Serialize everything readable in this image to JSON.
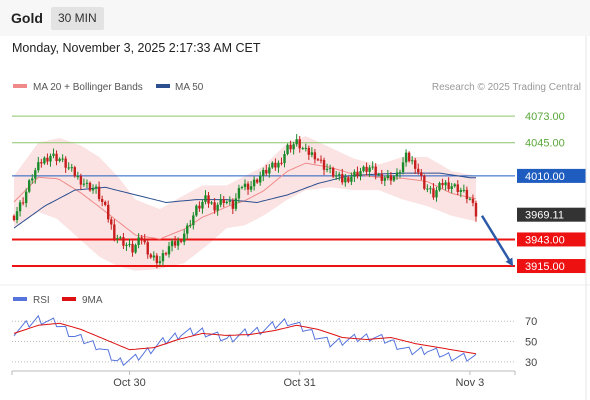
{
  "header": {
    "instrument": "Gold",
    "timeframe": "30 MIN"
  },
  "timestamp": "Monday, November 3, 2025 2:17:33 AM CET",
  "legend": {
    "items": [
      {
        "label": "MA 20 + Bollinger Bands",
        "color": "#f08a8a"
      },
      {
        "label": "MA 50",
        "color": "#2b4f8f"
      }
    ],
    "credit": "Research © 2025 Trading Central"
  },
  "colors": {
    "up": "#1a8a2a",
    "down": "#c81e1e",
    "support": "#ee1111",
    "resistance": "#8cc56a",
    "pivot": "#1f5cc0",
    "last": "#333333",
    "arrow": "#2c5aa8",
    "band": "#fadada"
  },
  "chart_data": [
    {
      "type": "candlestick",
      "x_tick_labels": [
        "Oct 30",
        "Oct 31",
        "Nov 3"
      ],
      "ylim": [
        3895,
        4090
      ],
      "last_price": 3969.11,
      "levels": [
        {
          "value": 4073.0,
          "label": "4073.00",
          "kind": "resistance"
        },
        {
          "value": 4045.0,
          "label": "4045.00",
          "kind": "resistance"
        },
        {
          "value": 4010.0,
          "label": "4010.00",
          "kind": "pivot"
        },
        {
          "value": 3969.11,
          "label": "3969.11",
          "kind": "last"
        },
        {
          "value": 3943.0,
          "label": "3943.00",
          "kind": "support"
        },
        {
          "value": 3915.0,
          "label": "3915.00",
          "kind": "support"
        }
      ],
      "projection": {
        "from": 3968,
        "to": 3915,
        "direction": "down"
      },
      "close_keypoints": [
        [
          0,
          3968
        ],
        [
          3,
          3985
        ],
        [
          6,
          4010
        ],
        [
          9,
          4025
        ],
        [
          12,
          4032
        ],
        [
          15,
          4028
        ],
        [
          18,
          4018
        ],
        [
          21,
          4008
        ],
        [
          24,
          4000
        ],
        [
          27,
          3995
        ],
        [
          30,
          3975
        ],
        [
          33,
          3948
        ],
        [
          36,
          3940
        ],
        [
          39,
          3932
        ],
        [
          42,
          3945
        ],
        [
          45,
          3925
        ],
        [
          48,
          3920
        ],
        [
          51,
          3935
        ],
        [
          54,
          3940
        ],
        [
          57,
          3955
        ],
        [
          60,
          3975
        ],
        [
          63,
          3985
        ],
        [
          66,
          3978
        ],
        [
          69,
          3985
        ],
        [
          72,
          3978
        ],
        [
          75,
          4000
        ],
        [
          78,
          4000
        ],
        [
          81,
          4010
        ],
        [
          84,
          4018
        ],
        [
          87,
          4022
        ],
        [
          90,
          4040
        ],
        [
          93,
          4045
        ],
        [
          96,
          4035
        ],
        [
          99,
          4032
        ],
        [
          102,
          4020
        ],
        [
          105,
          4012
        ],
        [
          108,
          4005
        ],
        [
          111,
          4010
        ],
        [
          114,
          4015
        ],
        [
          117,
          4018
        ],
        [
          120,
          4010
        ],
        [
          123,
          4008
        ],
        [
          126,
          4010
        ],
        [
          129,
          4030
        ],
        [
          132,
          4022
        ],
        [
          135,
          4000
        ],
        [
          138,
          3990
        ],
        [
          141,
          4002
        ],
        [
          144,
          4000
        ],
        [
          147,
          3995
        ],
        [
          150,
          3985
        ],
        [
          152,
          3969
        ]
      ],
      "ma50": [
        [
          0,
          3955
        ],
        [
          10,
          3978
        ],
        [
          20,
          3995
        ],
        [
          30,
          3998
        ],
        [
          40,
          3990
        ],
        [
          50,
          3982
        ],
        [
          60,
          3985
        ],
        [
          70,
          3985
        ],
        [
          80,
          3982
        ],
        [
          90,
          3990
        ],
        [
          100,
          4002
        ],
        [
          110,
          4010
        ],
        [
          120,
          4012
        ],
        [
          130,
          4013
        ],
        [
          140,
          4013
        ],
        [
          150,
          4008
        ]
      ],
      "bollinger_upper": [
        [
          0,
          4010
        ],
        [
          8,
          4045
        ],
        [
          15,
          4050
        ],
        [
          22,
          4042
        ],
        [
          28,
          4030
        ],
        [
          34,
          4010
        ],
        [
          40,
          3985
        ],
        [
          48,
          3975
        ],
        [
          55,
          3988
        ],
        [
          62,
          4000
        ],
        [
          70,
          4000
        ],
        [
          76,
          4010
        ],
        [
          82,
          4020
        ],
        [
          90,
          4045
        ],
        [
          96,
          4052
        ],
        [
          104,
          4040
        ],
        [
          112,
          4028
        ],
        [
          120,
          4022
        ],
        [
          128,
          4030
        ],
        [
          136,
          4030
        ],
        [
          144,
          4015
        ],
        [
          152,
          4010
        ]
      ],
      "bollinger_lower": [
        [
          0,
          3955
        ],
        [
          8,
          3972
        ],
        [
          14,
          3965
        ],
        [
          20,
          3948
        ],
        [
          28,
          3925
        ],
        [
          34,
          3915
        ],
        [
          40,
          3910
        ],
        [
          48,
          3912
        ],
        [
          56,
          3918
        ],
        [
          64,
          3938
        ],
        [
          70,
          3955
        ],
        [
          76,
          3958
        ],
        [
          82,
          3968
        ],
        [
          90,
          3985
        ],
        [
          96,
          3995
        ],
        [
          104,
          3998
        ],
        [
          112,
          3995
        ],
        [
          120,
          3995
        ],
        [
          128,
          3985
        ],
        [
          136,
          3978
        ],
        [
          144,
          3968
        ],
        [
          152,
          3962
        ]
      ]
    },
    {
      "type": "line",
      "series": [
        {
          "name": "RSI",
          "color": "#5575dd"
        },
        {
          "name": "9MA",
          "color": "#dd1111"
        }
      ],
      "ylim": [
        20,
        85
      ],
      "y_ticks": [
        70,
        50,
        30
      ],
      "rsi": [
        [
          0,
          60
        ],
        [
          8,
          72
        ],
        [
          14,
          68
        ],
        [
          20,
          55
        ],
        [
          28,
          45
        ],
        [
          34,
          30
        ],
        [
          40,
          33
        ],
        [
          48,
          48
        ],
        [
          55,
          58
        ],
        [
          62,
          60
        ],
        [
          70,
          52
        ],
        [
          76,
          58
        ],
        [
          82,
          62
        ],
        [
          90,
          70
        ],
        [
          96,
          62
        ],
        [
          104,
          48
        ],
        [
          110,
          52
        ],
        [
          118,
          55
        ],
        [
          124,
          50
        ],
        [
          130,
          40
        ],
        [
          136,
          42
        ],
        [
          142,
          36
        ],
        [
          148,
          34
        ],
        [
          152,
          34
        ]
      ],
      "ma9": [
        [
          0,
          58
        ],
        [
          8,
          66
        ],
        [
          15,
          68
        ],
        [
          22,
          62
        ],
        [
          30,
          52
        ],
        [
          38,
          42
        ],
        [
          46,
          44
        ],
        [
          54,
          52
        ],
        [
          62,
          58
        ],
        [
          70,
          56
        ],
        [
          78,
          57
        ],
        [
          86,
          61
        ],
        [
          93,
          66
        ],
        [
          100,
          62
        ],
        [
          108,
          54
        ],
        [
          116,
          52
        ],
        [
          124,
          54
        ],
        [
          132,
          48
        ],
        [
          140,
          44
        ],
        [
          148,
          40
        ],
        [
          152,
          38
        ]
      ]
    }
  ]
}
